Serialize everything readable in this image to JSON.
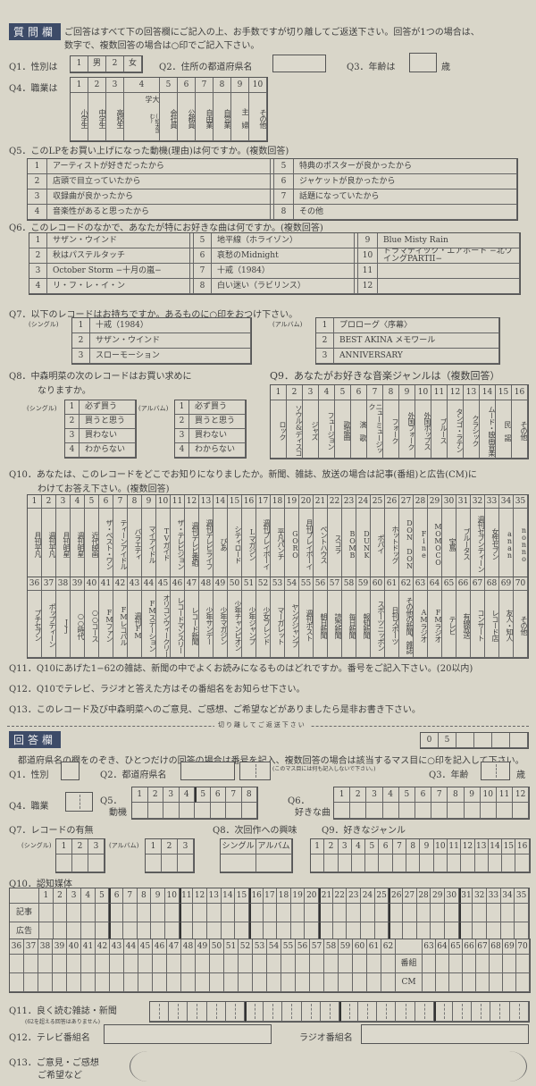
{
  "questions": {
    "header_label": "質問欄",
    "instructions": [
      "ご回答はすべて下の回答欄にご記入の上、お手数ですが切り離してご返送下さい。回答が1つの場合は、",
      "数字で、複数回答の場合は○印でご記入下さい。"
    ],
    "q1": {
      "label": "Q1．性別は",
      "options": [
        "1",
        "男",
        "2",
        "女"
      ]
    },
    "q2": {
      "label": "Q2．住所の都道府県名"
    },
    "q3": {
      "label": "Q3．年齢は",
      "unit": "歳"
    },
    "q4": {
      "label": "Q4．職業は",
      "nums": [
        "1",
        "2",
        "3",
        "4",
        "5",
        "6",
        "7",
        "8",
        "9",
        "10"
      ],
      "jobs": [
        "小学生",
        "中学生",
        "高校生",
        "大 学",
        "会社員",
        "公務員",
        "自由業",
        "自営業",
        "主 婦",
        "その他"
      ],
      "job4_note": "(短大含む)"
    },
    "q5": {
      "label": "Q5．このLPをお買い上げになった動機(理由)は何ですか。(複数回答)",
      "options": [
        [
          "1",
          "アーティストが好きだったから"
        ],
        [
          "2",
          "店頭で目立っていたから"
        ],
        [
          "3",
          "収録曲が良かったから"
        ],
        [
          "4",
          "音楽性があると思ったから"
        ],
        [
          "5",
          "特典のポスターが良かったから"
        ],
        [
          "6",
          "ジャケットが良かったから"
        ],
        [
          "7",
          "話題になっていたから"
        ],
        [
          "8",
          "その他"
        ]
      ]
    },
    "q6": {
      "label": "Q6．このレコードのなかで、あなたが特にお好きな曲は何ですか。(複数回答)",
      "songs": [
        [
          "1",
          "サザン・ウインド"
        ],
        [
          "2",
          "秋はパステルタッチ"
        ],
        [
          "3",
          "October Storm −十月の嵐−"
        ],
        [
          "4",
          "リ・フ・レ・イ・ン"
        ],
        [
          "5",
          "地平線（ホライゾン）"
        ],
        [
          "6",
          "哀愁のMidnight"
        ],
        [
          "7",
          "十戒（1984）"
        ],
        [
          "8",
          "白い迷い（ラビリンス）"
        ],
        [
          "9",
          "Blue Misty Rain"
        ],
        [
          "10",
          "ドラマティック・エアポート −北ウイングPARTII−"
        ],
        [
          "11",
          ""
        ],
        [
          "12",
          ""
        ]
      ]
    },
    "q7": {
      "label": "Q7．以下のレコードはお持ちですか。あるものに○印をおつけ下さい。",
      "single_label": "(シングル)",
      "album_label": "(アルバム)",
      "singles": [
        [
          "1",
          "十戒（1984）"
        ],
        [
          "2",
          "サザン・ウインド"
        ],
        [
          "3",
          "スローモーション"
        ]
      ],
      "albums": [
        [
          "1",
          "プロローグ〈序幕〉"
        ],
        [
          "2",
          "BEST AKINA メモワール"
        ],
        [
          "3",
          "ANNIVERSARY"
        ]
      ]
    },
    "q8": {
      "label": [
        "Q8．中森明菜の次のレコードはお買い求めに",
        "なりますか。"
      ],
      "single_label": "(シングル)",
      "album_label": "(アルバム)",
      "options": [
        [
          "1",
          "必ず買う"
        ],
        [
          "2",
          "買うと思う"
        ],
        [
          "3",
          "買わない"
        ],
        [
          "4",
          "わからない"
        ]
      ]
    },
    "q9": {
      "label": "Q9．あなたがお好きな音楽ジャンルは（複数回答）",
      "genres": [
        "ロック",
        "ソウル&ディスコ",
        "ジャズ",
        "フュージョン",
        "歌謡曲",
        "演 歌",
        "ニューミュージック",
        "フォーク",
        "外国フォーク",
        "外国ポップス",
        "ブルース",
        "タンゴ・ラテン",
        "クラシック",
        "ムード・映画音楽",
        "民 謡",
        "その他"
      ]
    },
    "q10": {
      "label": [
        "Q10．あなたは、このレコードをどこでお知りになりましたか。新聞、雑誌、放送の場合は記事(番組)と広告(CM)に",
        "わけてお答え下さい。(複数回答)"
      ],
      "media": [
        "月刊平凡",
        "週刊平凡",
        "月刊明星",
        "週刊明星",
        "近代映画",
        "ザ・ベスト・ワン",
        "ティーンアイドル",
        "バラエティ",
        "マイアイドル",
        "TVガイド",
        "ザ・テレビジョン",
        "週刊テレビ番組",
        "週刊テレビライフ",
        "ぴあ",
        "シティロード",
        "Lマガジン",
        "週刊プレイボーイ",
        "平凡パンチ",
        "GORO",
        "月刊プレイボーイ",
        "ペントハウス",
        "スコラ",
        "BOMB",
        "DUNK",
        "ポパイ",
        "ホットドッグ",
        "DON DON",
        "Fine",
        "MOMOCO",
        "宝島",
        "ブルータス",
        "週刊セブンティーン",
        "女性セブン",
        "anan",
        "nonno",
        "プチセブン",
        "ポップティーン",
        "JJ",
        "○○時代",
        "○○コース",
        "FMファン",
        "FMレコパル",
        "週刊FM",
        "FMステーション",
        "オリコンウィークリー",
        "レコードマンスリー",
        "レコード新聞",
        "少年サンデー",
        "少年マガジン",
        "少年チャンピオン",
        "少年ジャンプ",
        "少女フレンド",
        "マーガレット",
        "ヤングジャンプ",
        "週刊ポスト",
        "朝日新聞",
        "読売新聞",
        "毎日新聞",
        "報知新聞",
        "スポーツニッポン",
        "日刊スポーツ",
        "その他の新聞、雑誌",
        "AMラジオ",
        "FMラジオ",
        "テレビ",
        "有線放送",
        "コンサート",
        "レコード店",
        "友人・知人",
        "その他"
      ]
    },
    "q11": {
      "label": "Q11．Q10にあげた1−62の雑誌、新聞の中でよくお読みになるものはどれですか。番号をご記入下さい。(20以内)"
    },
    "q12": {
      "label": "Q12．Q10でテレビ、ラジオと答えた方はその番組名をお知らせ下さい。"
    },
    "q13": {
      "label": "Q13．このレコード及び中森明菜へのご意見、ご感想、ご希望などがありましたら是非お書き下さい。"
    }
  },
  "cut_line": "切り離してご返送下さい",
  "answers": {
    "header_label": "回答欄",
    "code_boxes": [
      "0",
      "5",
      "",
      "",
      "",
      ""
    ],
    "instructions": "都道府県名の欄をのぞき、ひとつだけの回答の場合は番号を記入、複数回答の場合は該当するマス目に○印を記入して下さい。",
    "q1": "Q1．性別",
    "q2": "Q2．都道府県名",
    "q2_note": "(このマス目には何も記入しないで下さい。)",
    "q3": "Q3．年齢",
    "q3_unit": "歳",
    "q4": "Q4．職業",
    "q5": "Q5．",
    "q5_sub": "動機",
    "q6": "Q6．",
    "q6_sub": "好きな曲",
    "q7": "Q7．レコードの有無",
    "q7_single": "(シングル)",
    "q7_album": "(アルバム)",
    "q8": "Q8．次回作への興味",
    "q8_cols": [
      "シングル",
      "アルバム"
    ],
    "q9": "Q9．好きなジャンル",
    "q10": "Q10．認知媒体",
    "q10_rows": [
      "記事",
      "広告"
    ],
    "q10_rows2": [
      "番組",
      "CM"
    ],
    "q11": "Q11．良く読む雑誌・新聞",
    "q11_note": "(62を超える回答はありません)",
    "q12": "Q12．テレビ番組名",
    "q12_radio": "ラジオ番組名",
    "q13": [
      "Q13．ご意見・ご感想",
      "ご希望など"
    ]
  },
  "colors": {
    "ink": "#3e3e3e",
    "paper": "#d9d6c9",
    "header": "#3d4b68"
  }
}
